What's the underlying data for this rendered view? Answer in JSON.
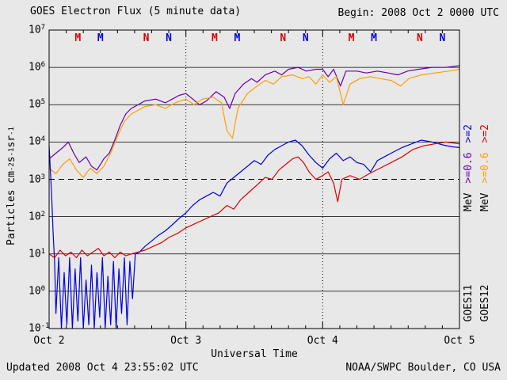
{
  "title": "GOES Electron Flux (5 minute data)",
  "begin_label": "Begin: 2008 Oct 2 0000 UTC",
  "footer": {
    "updated": "Updated 2008 Oct  4 23:55:02 UTC",
    "credit": "NOAA/SWPC Boulder, CO USA"
  },
  "axes": {
    "xlabel": "Universal Time",
    "y_tick_base": "10",
    "y_exponents": [
      7,
      6,
      5,
      4,
      3,
      2,
      1,
      0,
      -1
    ],
    "x_ticks": [
      {
        "day": 0,
        "label": "Oct 2"
      },
      {
        "day": 1,
        "label": "Oct 3"
      },
      {
        "day": 2,
        "label": "Oct 4"
      },
      {
        "day": 3,
        "label": "Oct 5"
      }
    ],
    "ylabel": {
      "base1": "Particles cm",
      "sup1": "-2",
      "base2": "s",
      "sup2": "-1",
      "base3": "sr",
      "sup3": "-1"
    }
  },
  "legend": {
    "goes11": {
      "sat": "GOES11",
      "e2": ">=2",
      "e06": ">=0.6",
      "mev": "MeV"
    },
    "goes12": {
      "sat": "GOES12",
      "e2": ">=2",
      "e06": ">=0.6",
      "mev": "MeV"
    }
  },
  "colors": {
    "purple": "#6a00a8",
    "orange": "#ff9f00",
    "blue": "#0000dd",
    "red": "#dd0000",
    "text": "#000000",
    "grid": "#000000",
    "background": "#e8e8e8"
  },
  "chart_data": {
    "type": "line",
    "title": "GOES Electron Flux (5 minute data)",
    "xlabel": "Universal Time",
    "ylabel": "Particles cm-2 s-1 sr-1",
    "x_unit": "days since 2008 Oct 2 0000 UTC",
    "x_range": [
      0,
      3
    ],
    "y_scale": "log10",
    "y_range_log": [
      -1,
      7
    ],
    "grid": "solid horizontal lines at each decade 10^0..10^6",
    "threshold": {
      "log_value": 3,
      "style": "dashed"
    },
    "day_boundaries": [
      1,
      2
    ],
    "markers": [
      {
        "label": "M",
        "color_key": "red",
        "day": 0.21
      },
      {
        "label": "M",
        "color_key": "blue",
        "day": 0.375
      },
      {
        "label": "N",
        "color_key": "red",
        "day": 0.71
      },
      {
        "label": "N",
        "color_key": "blue",
        "day": 0.875
      },
      {
        "label": "M",
        "color_key": "red",
        "day": 1.21
      },
      {
        "label": "M",
        "color_key": "blue",
        "day": 1.375
      },
      {
        "label": "N",
        "color_key": "red",
        "day": 1.71
      },
      {
        "label": "N",
        "color_key": "blue",
        "day": 1.875
      },
      {
        "label": "M",
        "color_key": "red",
        "day": 2.21
      },
      {
        "label": "M",
        "color_key": "blue",
        "day": 2.375
      },
      {
        "label": "N",
        "color_key": "red",
        "day": 2.71
      },
      {
        "label": "N",
        "color_key": "blue",
        "day": 2.875
      }
    ],
    "series": [
      {
        "id": "goes11_e06",
        "name": "GOES11 E >=0.6 MeV",
        "color_key": "purple",
        "points_format": "[day, log10(flux)]",
        "points": [
          [
            0.0,
            3.55
          ],
          [
            0.05,
            3.7
          ],
          [
            0.1,
            3.85
          ],
          [
            0.14,
            4.0
          ],
          [
            0.18,
            3.7
          ],
          [
            0.22,
            3.45
          ],
          [
            0.27,
            3.6
          ],
          [
            0.31,
            3.35
          ],
          [
            0.35,
            3.25
          ],
          [
            0.4,
            3.55
          ],
          [
            0.44,
            3.7
          ],
          [
            0.48,
            4.05
          ],
          [
            0.52,
            4.45
          ],
          [
            0.56,
            4.75
          ],
          [
            0.6,
            4.9
          ],
          [
            0.65,
            5.0
          ],
          [
            0.7,
            5.1
          ],
          [
            0.78,
            5.15
          ],
          [
            0.85,
            5.05
          ],
          [
            0.9,
            5.15
          ],
          [
            0.95,
            5.25
          ],
          [
            1.0,
            5.3
          ],
          [
            1.05,
            5.15
          ],
          [
            1.1,
            5.0
          ],
          [
            1.15,
            5.1
          ],
          [
            1.22,
            5.35
          ],
          [
            1.28,
            5.2
          ],
          [
            1.32,
            4.9
          ],
          [
            1.36,
            5.3
          ],
          [
            1.42,
            5.55
          ],
          [
            1.48,
            5.7
          ],
          [
            1.52,
            5.6
          ],
          [
            1.58,
            5.8
          ],
          [
            1.65,
            5.9
          ],
          [
            1.7,
            5.8
          ],
          [
            1.75,
            5.95
          ],
          [
            1.82,
            6.0
          ],
          [
            1.88,
            5.9
          ],
          [
            1.95,
            5.95
          ],
          [
            2.0,
            5.95
          ],
          [
            2.04,
            5.75
          ],
          [
            2.08,
            5.95
          ],
          [
            2.13,
            5.5
          ],
          [
            2.17,
            5.9
          ],
          [
            2.25,
            5.9
          ],
          [
            2.32,
            5.85
          ],
          [
            2.4,
            5.9
          ],
          [
            2.48,
            5.85
          ],
          [
            2.55,
            5.8
          ],
          [
            2.62,
            5.9
          ],
          [
            2.7,
            5.95
          ],
          [
            2.8,
            6.0
          ],
          [
            2.9,
            6.0
          ],
          [
            3.0,
            6.05
          ]
        ]
      },
      {
        "id": "goes12_e06",
        "name": "GOES12 E >=0.6 MeV",
        "color_key": "orange",
        "points_format": "[day, log10(flux)]",
        "points": [
          [
            0.0,
            3.3
          ],
          [
            0.05,
            3.15
          ],
          [
            0.1,
            3.4
          ],
          [
            0.15,
            3.55
          ],
          [
            0.2,
            3.25
          ],
          [
            0.25,
            3.05
          ],
          [
            0.3,
            3.3
          ],
          [
            0.35,
            3.15
          ],
          [
            0.4,
            3.35
          ],
          [
            0.45,
            3.7
          ],
          [
            0.5,
            4.15
          ],
          [
            0.55,
            4.55
          ],
          [
            0.6,
            4.75
          ],
          [
            0.65,
            4.85
          ],
          [
            0.7,
            4.95
          ],
          [
            0.78,
            5.0
          ],
          [
            0.85,
            4.9
          ],
          [
            0.92,
            5.05
          ],
          [
            1.0,
            5.15
          ],
          [
            1.06,
            5.0
          ],
          [
            1.12,
            5.15
          ],
          [
            1.2,
            5.2
          ],
          [
            1.26,
            5.05
          ],
          [
            1.3,
            4.3
          ],
          [
            1.34,
            4.1
          ],
          [
            1.38,
            4.9
          ],
          [
            1.45,
            5.3
          ],
          [
            1.52,
            5.5
          ],
          [
            1.58,
            5.65
          ],
          [
            1.64,
            5.55
          ],
          [
            1.7,
            5.75
          ],
          [
            1.78,
            5.8
          ],
          [
            1.85,
            5.7
          ],
          [
            1.9,
            5.75
          ],
          [
            1.95,
            5.55
          ],
          [
            2.0,
            5.8
          ],
          [
            2.05,
            5.6
          ],
          [
            2.1,
            5.75
          ],
          [
            2.15,
            5.0
          ],
          [
            2.2,
            5.55
          ],
          [
            2.27,
            5.7
          ],
          [
            2.35,
            5.75
          ],
          [
            2.42,
            5.7
          ],
          [
            2.5,
            5.65
          ],
          [
            2.57,
            5.5
          ],
          [
            2.63,
            5.7
          ],
          [
            2.72,
            5.8
          ],
          [
            2.82,
            5.85
          ],
          [
            2.92,
            5.9
          ],
          [
            3.0,
            5.95
          ]
        ]
      },
      {
        "id": "goes11_e2",
        "name": "GOES11 E >=2 MeV",
        "color_key": "blue",
        "points_format": "[day, log10(flux)]",
        "points": [
          [
            0.0,
            3.9
          ],
          [
            0.01,
            3.2
          ],
          [
            0.02,
            2.4
          ],
          [
            0.03,
            1.5
          ],
          [
            0.04,
            0.8
          ],
          [
            0.05,
            -0.6
          ],
          [
            0.07,
            0.9
          ],
          [
            0.09,
            -1.0
          ],
          [
            0.11,
            0.5
          ],
          [
            0.13,
            -0.9
          ],
          [
            0.15,
            0.9
          ],
          [
            0.17,
            -1.0
          ],
          [
            0.19,
            0.6
          ],
          [
            0.21,
            -0.8
          ],
          [
            0.23,
            0.9
          ],
          [
            0.25,
            -1.0
          ],
          [
            0.27,
            0.3
          ],
          [
            0.29,
            -0.9
          ],
          [
            0.31,
            0.7
          ],
          [
            0.33,
            -1.0
          ],
          [
            0.35,
            0.5
          ],
          [
            0.37,
            -0.7
          ],
          [
            0.39,
            0.9
          ],
          [
            0.41,
            -1.0
          ],
          [
            0.43,
            0.4
          ],
          [
            0.45,
            -0.9
          ],
          [
            0.47,
            0.8
          ],
          [
            0.49,
            -1.0
          ],
          [
            0.51,
            0.6
          ],
          [
            0.53,
            -0.6
          ],
          [
            0.55,
            0.9
          ],
          [
            0.57,
            -0.9
          ],
          [
            0.59,
            0.8
          ],
          [
            0.61,
            -0.2
          ],
          [
            0.63,
            1.0
          ],
          [
            0.66,
            1.05
          ],
          [
            0.7,
            1.2
          ],
          [
            0.75,
            1.35
          ],
          [
            0.8,
            1.5
          ],
          [
            0.85,
            1.62
          ],
          [
            0.9,
            1.78
          ],
          [
            0.95,
            1.95
          ],
          [
            1.0,
            2.1
          ],
          [
            1.05,
            2.3
          ],
          [
            1.1,
            2.45
          ],
          [
            1.15,
            2.55
          ],
          [
            1.2,
            2.65
          ],
          [
            1.25,
            2.55
          ],
          [
            1.3,
            2.9
          ],
          [
            1.35,
            3.05
          ],
          [
            1.4,
            3.2
          ],
          [
            1.45,
            3.35
          ],
          [
            1.5,
            3.5
          ],
          [
            1.55,
            3.4
          ],
          [
            1.6,
            3.65
          ],
          [
            1.65,
            3.8
          ],
          [
            1.7,
            3.9
          ],
          [
            1.75,
            4.0
          ],
          [
            1.8,
            4.05
          ],
          [
            1.85,
            3.9
          ],
          [
            1.9,
            3.65
          ],
          [
            1.95,
            3.45
          ],
          [
            2.0,
            3.3
          ],
          [
            2.05,
            3.55
          ],
          [
            2.1,
            3.7
          ],
          [
            2.15,
            3.5
          ],
          [
            2.2,
            3.6
          ],
          [
            2.25,
            3.45
          ],
          [
            2.3,
            3.4
          ],
          [
            2.35,
            3.2
          ],
          [
            2.4,
            3.5
          ],
          [
            2.45,
            3.6
          ],
          [
            2.5,
            3.7
          ],
          [
            2.58,
            3.85
          ],
          [
            2.65,
            3.95
          ],
          [
            2.72,
            4.05
          ],
          [
            2.8,
            4.0
          ],
          [
            2.88,
            3.92
          ],
          [
            2.95,
            3.87
          ],
          [
            3.0,
            3.85
          ]
        ]
      },
      {
        "id": "goes12_e2",
        "name": "GOES12 E >=2 MeV",
        "color_key": "red",
        "points_format": "[day, log10(flux)]",
        "points": [
          [
            0.0,
            1.0
          ],
          [
            0.04,
            0.9
          ],
          [
            0.08,
            1.1
          ],
          [
            0.12,
            0.95
          ],
          [
            0.16,
            1.05
          ],
          [
            0.2,
            0.9
          ],
          [
            0.24,
            1.1
          ],
          [
            0.28,
            0.95
          ],
          [
            0.32,
            1.05
          ],
          [
            0.36,
            1.15
          ],
          [
            0.4,
            0.95
          ],
          [
            0.44,
            1.05
          ],
          [
            0.48,
            0.9
          ],
          [
            0.52,
            1.05
          ],
          [
            0.56,
            0.95
          ],
          [
            0.6,
            1.0
          ],
          [
            0.65,
            1.05
          ],
          [
            0.7,
            1.1
          ],
          [
            0.76,
            1.2
          ],
          [
            0.82,
            1.3
          ],
          [
            0.88,
            1.45
          ],
          [
            0.94,
            1.55
          ],
          [
            1.0,
            1.7
          ],
          [
            1.06,
            1.8
          ],
          [
            1.12,
            1.9
          ],
          [
            1.18,
            2.0
          ],
          [
            1.24,
            2.1
          ],
          [
            1.3,
            2.3
          ],
          [
            1.35,
            2.2
          ],
          [
            1.4,
            2.45
          ],
          [
            1.46,
            2.65
          ],
          [
            1.52,
            2.85
          ],
          [
            1.58,
            3.05
          ],
          [
            1.63,
            3.0
          ],
          [
            1.68,
            3.25
          ],
          [
            1.73,
            3.4
          ],
          [
            1.78,
            3.55
          ],
          [
            1.82,
            3.6
          ],
          [
            1.86,
            3.45
          ],
          [
            1.9,
            3.2
          ],
          [
            1.95,
            3.0
          ],
          [
            2.0,
            3.1
          ],
          [
            2.04,
            3.2
          ],
          [
            2.08,
            2.9
          ],
          [
            2.11,
            2.4
          ],
          [
            2.14,
            3.0
          ],
          [
            2.2,
            3.1
          ],
          [
            2.27,
            3.0
          ],
          [
            2.34,
            3.15
          ],
          [
            2.42,
            3.3
          ],
          [
            2.5,
            3.45
          ],
          [
            2.58,
            3.6
          ],
          [
            2.66,
            3.8
          ],
          [
            2.74,
            3.9
          ],
          [
            2.82,
            3.95
          ],
          [
            2.9,
            4.0
          ],
          [
            3.0,
            3.95
          ]
        ]
      }
    ]
  }
}
